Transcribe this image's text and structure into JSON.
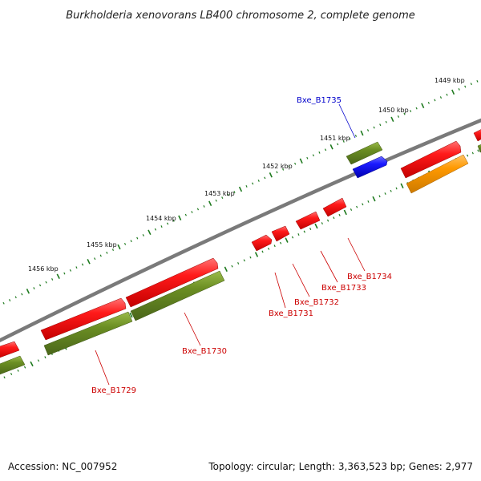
{
  "title": "Burkholderia xenovorans LB400 chromosome 2, complete genome",
  "footer": {
    "accession": "Accession: NC_007952",
    "summary": "Topology: circular; Length: 3,363,523 bp; Genes: 2,977"
  },
  "colors": {
    "backbone": "#7a7a7a",
    "tick": "#1e7a1e",
    "gene_red": "#ff1a1a",
    "gene_green": "#6b8e23",
    "gene_blue": "#1a1aff",
    "gene_orange": "#ff9900",
    "label_red": "#cc0000",
    "label_blue": "#0000cc"
  },
  "kbp_labels": [
    "1449 kbp",
    "1450 kbp",
    "1451 kbp",
    "1452 kbp",
    "1453 kbp",
    "1454 kbp",
    "1455 kbp",
    "1456 kbp"
  ],
  "gene_labels": {
    "b1735": "Bxe_B1735",
    "b1734": "Bxe_B1734",
    "b1733": "Bxe_B1733",
    "b1732": "Bxe_B1732",
    "b1731": "Bxe_B1731",
    "b1730": "Bxe_B1730",
    "b1729": "Bxe_B1729"
  }
}
